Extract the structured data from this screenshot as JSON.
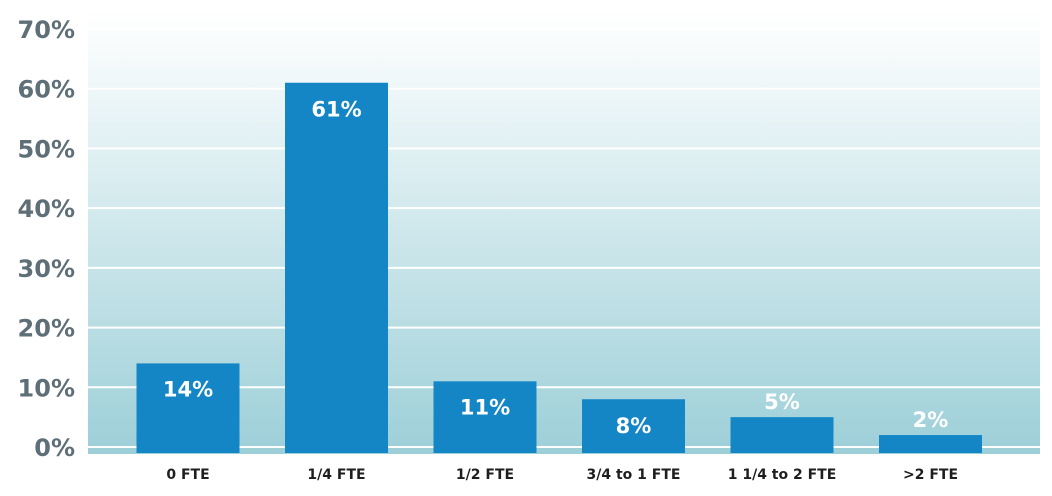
{
  "chart_data": {
    "type": "bar",
    "categories": [
      "0 FTE",
      "1/4 FTE",
      "1/2 FTE",
      "3/4 to 1 FTE",
      "1 1/4 to 2 FTE",
      ">2 FTE"
    ],
    "values": [
      14,
      61,
      11,
      8,
      5,
      2
    ],
    "data_labels": [
      "14%",
      "61%",
      "11%",
      "8%",
      "5%",
      "2%"
    ],
    "title": "",
    "xlabel": "",
    "ylabel": "",
    "ylim": [
      0,
      70
    ],
    "yticks": [
      0,
      10,
      20,
      30,
      40,
      50,
      60,
      70
    ],
    "ytick_labels": [
      "0%",
      "10%",
      "20%",
      "30%",
      "40%",
      "50%",
      "60%",
      "70%"
    ],
    "grid": true,
    "legend": false,
    "colors": {
      "bar": "#1486c6",
      "gradient_top": "#ffffff",
      "gradient_bottom": "#9dcfd8",
      "grid": "#ffffff",
      "axis_text": "#5f6f78",
      "category_text": "#1e1e1e",
      "data_label": "#ffffff"
    }
  }
}
